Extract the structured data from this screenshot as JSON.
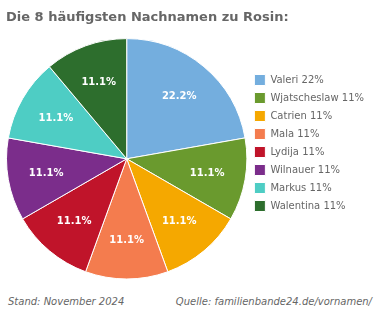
{
  "chart_data": {
    "type": "pie",
    "title": "Die 8 häufigsten Nachnamen zu Rosin:",
    "categories": [
      "Valeri 22%",
      "Wjatscheslaw 11%",
      "Catrien 11%",
      "Mala 11%",
      "Lydija 11%",
      "Wilnauer 11%",
      "Markus 11%",
      "Walentina 11%"
    ],
    "values": [
      22.2,
      11.1,
      11.1,
      11.1,
      11.1,
      11.1,
      11.1,
      11.1
    ],
    "value_labels": [
      "22.2%",
      "11.1%",
      "11.1%",
      "11.1%",
      "11.1%",
      "11.1%",
      "11.1%",
      "11.1%"
    ],
    "colors": [
      "#74aede",
      "#6a9a2e",
      "#f5a800",
      "#f47c4e",
      "#c0142a",
      "#7b2d8b",
      "#4ecdc4",
      "#2d6e2d"
    ],
    "data_labels": true,
    "legend": "right",
    "annotations": [
      "Stand: November 2024",
      "Quelle: familienbande24.de/vornamen/"
    ]
  }
}
